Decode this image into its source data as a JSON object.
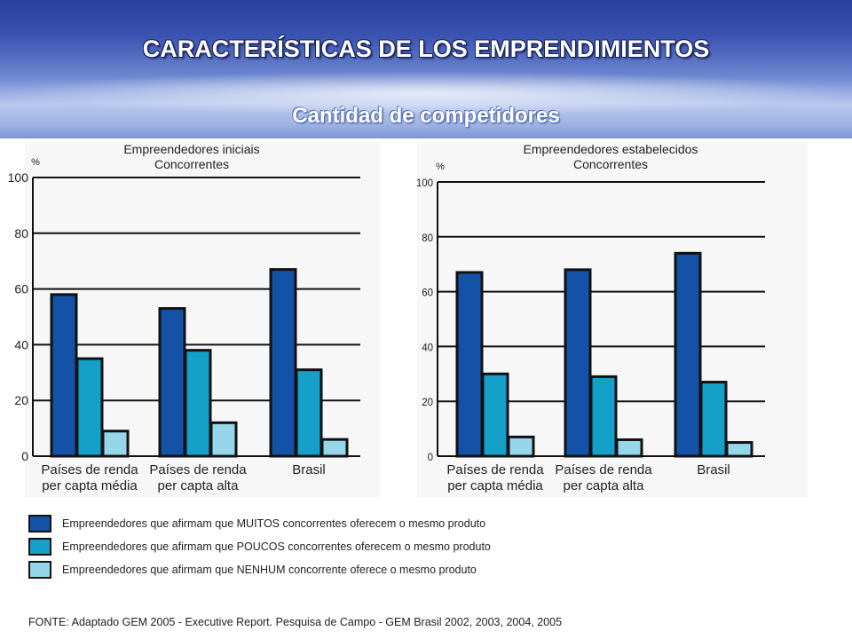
{
  "header": {
    "title": "CARACTERÍSTICAS DE LOS EMPRENDIMIENTOS",
    "subtitle": "Cantidad de competidores"
  },
  "colors": {
    "muitos": "#1452a8",
    "poucos": "#14a0c8",
    "nenhum": "#96d6ea"
  },
  "chart_data": [
    {
      "type": "bar",
      "title": "Empreendedores iniciais",
      "subtitle": "Concorrentes",
      "ylabel": "%",
      "ylim": [
        0,
        100
      ],
      "yticks": [
        "0",
        "20",
        "40",
        "60",
        "80",
        "100"
      ],
      "categories": [
        "Países de renda per capta média",
        "Países de renda per capta alta",
        "Brasil"
      ],
      "category_lines": [
        [
          "Países de renda",
          "per capta média"
        ],
        [
          "Países de renda",
          "per capta alta"
        ],
        [
          "Brasil"
        ]
      ],
      "series": [
        {
          "name": "MUITOS",
          "values": [
            58,
            53,
            67
          ]
        },
        {
          "name": "POUCOS",
          "values": [
            35,
            38,
            31
          ]
        },
        {
          "name": "NENHUM",
          "values": [
            9,
            12,
            6
          ]
        }
      ]
    },
    {
      "type": "bar",
      "title": "Empreendedores estabelecidos",
      "subtitle": "Concorrentes",
      "ylabel": "%",
      "ylim": [
        0,
        100
      ],
      "yticks": [
        "0",
        "20",
        "40",
        "60",
        "80",
        "100"
      ],
      "categories": [
        "Países de renda per capta média",
        "Países de renda per capta alta",
        "Brasil"
      ],
      "category_lines": [
        [
          "Países de renda",
          "per capta média"
        ],
        [
          "Países de renda",
          "per capta alta"
        ],
        [
          "Brasil"
        ]
      ],
      "series": [
        {
          "name": "MUITOS",
          "values": [
            67,
            68,
            74
          ]
        },
        {
          "name": "POUCOS",
          "values": [
            30,
            29,
            27
          ]
        },
        {
          "name": "NENHUM",
          "values": [
            7,
            6,
            5
          ]
        }
      ]
    }
  ],
  "legend": [
    "Empreendedores que afirmam que  MUITOS  concorrentes oferecem o mesmo produto",
    "Empreendedores que afirmam que  POUCOS  concorrentes oferecem o mesmo produto",
    "Empreendedores que afirmam que  NENHUM  concorrente oferece o mesmo produto"
  ],
  "source": "FONTE: Adaptado GEM 2005 - Executive Report. Pesquisa de Campo - GEM Brasil 2002, 2003, 2004, 2005"
}
